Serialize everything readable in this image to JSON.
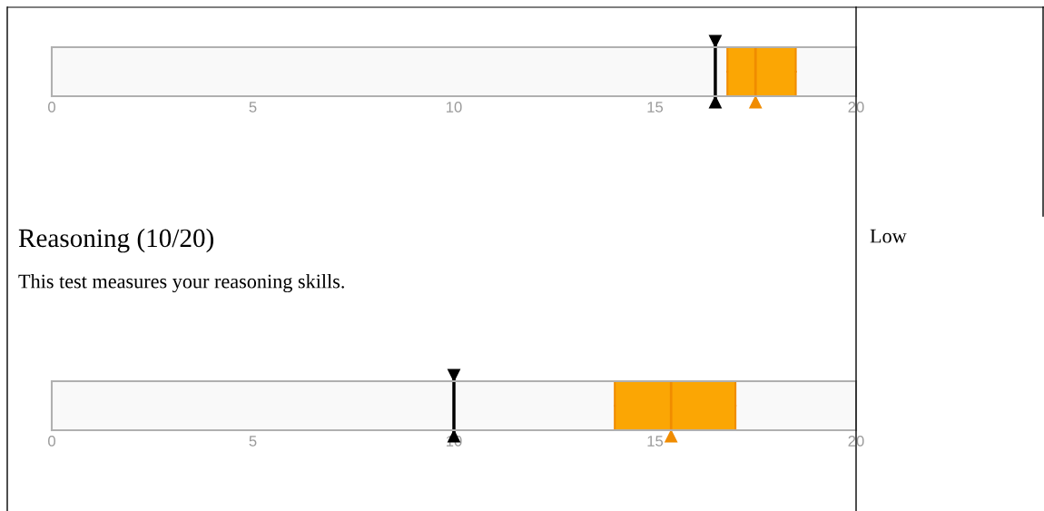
{
  "chart_data": [
    {
      "type": "box",
      "orientation": "horizontal",
      "categories": [
        null
      ],
      "series": [
        {
          "color": "#fba604",
          "boxes": [
            {
              "low": 16.8,
              "q1": 16.8,
              "median": 17.5,
              "q3": 18.5,
              "high": 18.5
            }
          ]
        }
      ],
      "xlim": [
        0,
        20
      ],
      "xticks": [
        0,
        5,
        10,
        15,
        20
      ],
      "tick_labels": "x",
      "grid": false,
      "ref_lines": [
        {
          "axis": "x",
          "value": 16.5,
          "color": "#000000"
        }
      ]
    },
    {
      "type": "box",
      "orientation": "horizontal",
      "title": "Reasoning (10/20)",
      "subtitle": "This test measures your reasoning skills.",
      "annotations": [
        "Low"
      ],
      "categories": [
        null
      ],
      "series": [
        {
          "color": "#fba604",
          "boxes": [
            {
              "low": 14.0,
              "q1": 14.0,
              "median": 15.4,
              "q3": 17.0,
              "high": 17.0
            }
          ]
        }
      ],
      "xlim": [
        0,
        20
      ],
      "xticks": [
        0,
        5,
        10,
        15,
        20
      ],
      "tick_labels": "x",
      "grid": false,
      "ref_lines": [
        {
          "axis": "x",
          "value": 10,
          "color": "#000000"
        }
      ]
    }
  ]
}
